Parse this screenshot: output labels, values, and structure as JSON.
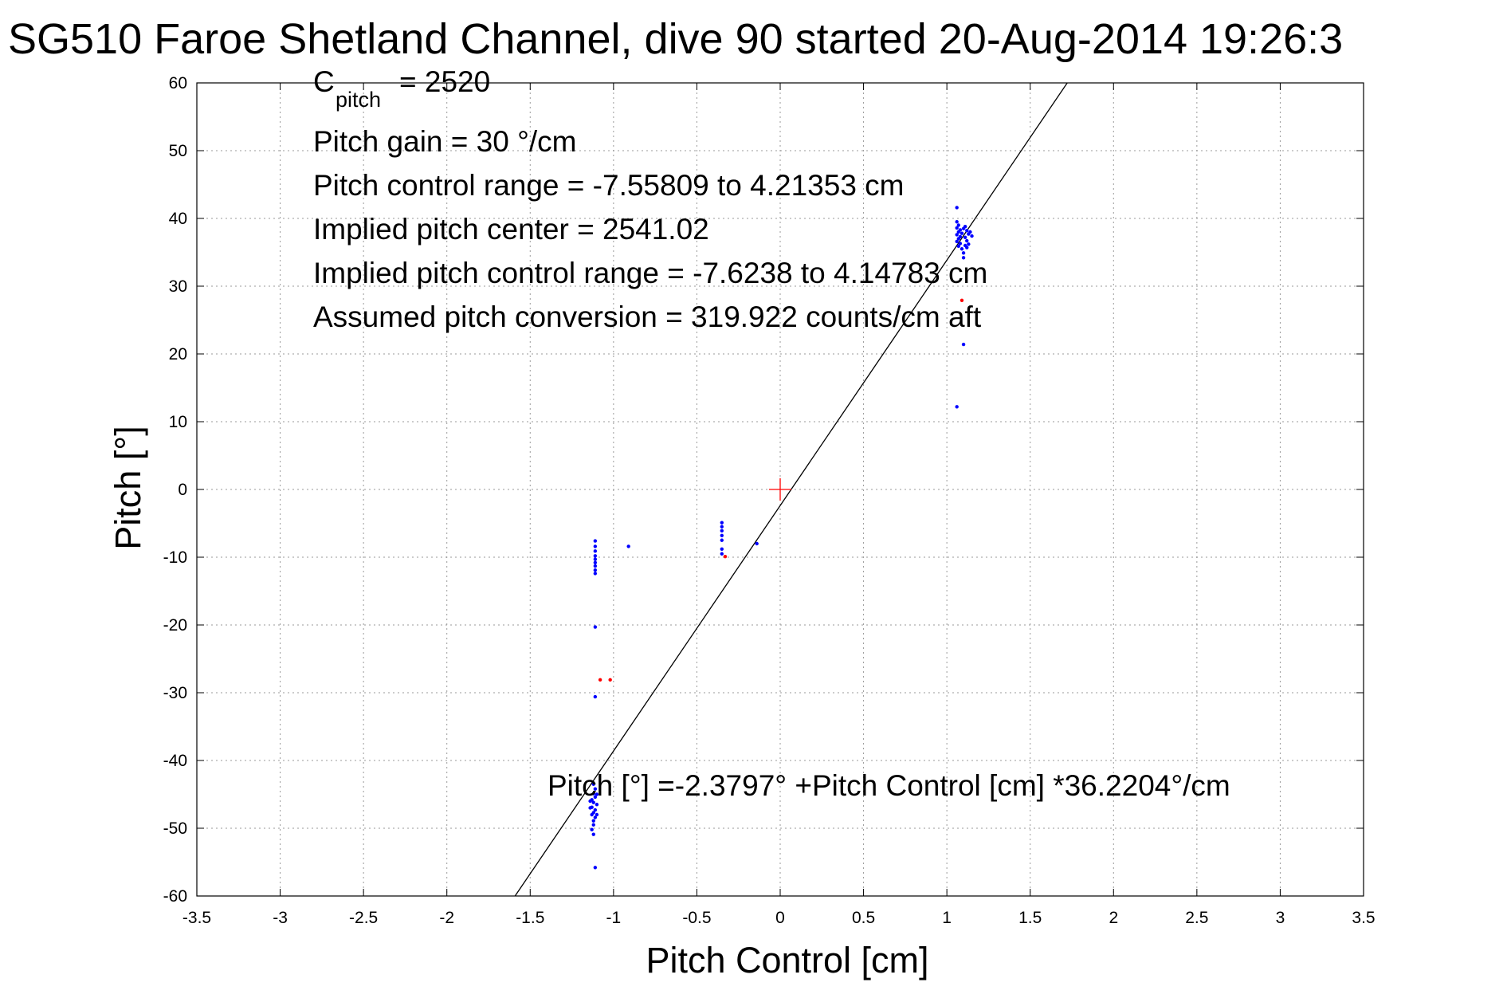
{
  "chart_data": {
    "type": "scatter",
    "title": "SG510 Faroe Shetland Channel, dive 90 started 20-Aug-2014 19:26:3",
    "xlabel": "Pitch Control [cm]",
    "ylabel": "Pitch [°]",
    "xlim": [
      -3.5,
      3.5
    ],
    "ylim": [
      -60,
      60
    ],
    "xticks": [
      -3.5,
      -3,
      -2.5,
      -2,
      -1.5,
      -1,
      -0.5,
      0,
      0.5,
      1,
      1.5,
      2,
      2.5,
      3,
      3.5
    ],
    "xtick_labels": [
      "-3.5",
      "-3",
      "-2.5",
      "-2",
      "-1.5",
      "-1",
      "-0.5",
      "0",
      "0.5",
      "1",
      "1.5",
      "2",
      "2.5",
      "3",
      "3.5"
    ],
    "yticks": [
      60,
      50,
      40,
      30,
      20,
      10,
      0,
      -10,
      -20,
      -30,
      -40,
      -50,
      -60
    ],
    "ytick_labels": [
      "60",
      "50",
      "40",
      "30",
      "20",
      "10",
      "0",
      "-10",
      "-20",
      "-30",
      "-40",
      "-50",
      "-60"
    ],
    "grid": true,
    "colors": {
      "good": "#0000ff",
      "bad": "#ff0000",
      "fit": "#000000",
      "center": "#ff0000"
    },
    "fit_line": {
      "intercept": -2.3797,
      "slope": 36.2204
    },
    "center_marker": {
      "x": 0,
      "y": 0
    },
    "series": [
      {
        "color": "#0000ff",
        "points": [
          [
            -1.11,
            -7.6
          ],
          [
            -1.11,
            -8.4
          ],
          [
            -1.11,
            -9.1
          ],
          [
            -1.11,
            -9.8
          ],
          [
            -1.11,
            -10.3
          ],
          [
            -1.11,
            -10.8
          ],
          [
            -1.11,
            -11.3
          ],
          [
            -1.11,
            -11.9
          ],
          [
            -1.11,
            -12.4
          ],
          [
            -0.91,
            -8.4
          ],
          [
            -1.11,
            -20.3
          ],
          [
            -1.11,
            -30.6
          ],
          [
            -0.35,
            -4.9
          ],
          [
            -0.35,
            -5.5
          ],
          [
            -0.35,
            -6.1
          ],
          [
            -0.35,
            -6.8
          ],
          [
            -0.35,
            -7.5
          ],
          [
            -0.35,
            -8.8
          ],
          [
            -0.35,
            -9.5
          ],
          [
            -0.14,
            -8.0
          ],
          [
            -1.12,
            -43.5
          ],
          [
            -1.11,
            -44.2
          ],
          [
            -1.12,
            -44.9
          ],
          [
            -1.11,
            -45.4
          ],
          [
            -1.13,
            -45.8
          ],
          [
            -1.12,
            -46.2
          ],
          [
            -1.1,
            -46.5
          ],
          [
            -1.13,
            -46.9
          ],
          [
            -1.11,
            -47.3
          ],
          [
            -1.12,
            -47.7
          ],
          [
            -1.13,
            -48.0
          ],
          [
            -1.11,
            -48.4
          ],
          [
            -1.12,
            -48.9
          ],
          [
            -1.12,
            -49.5
          ],
          [
            -1.13,
            -50.2
          ],
          [
            -1.12,
            -50.9
          ],
          [
            -1.11,
            -55.8
          ],
          [
            -1.1,
            -45.0
          ],
          [
            -1.14,
            -47.0
          ],
          [
            -1.1,
            -48.0
          ],
          [
            -1.14,
            -46.0
          ],
          [
            1.06,
            41.6
          ],
          [
            1.06,
            39.5
          ],
          [
            1.07,
            39.0
          ],
          [
            1.06,
            38.6
          ],
          [
            1.08,
            38.3
          ],
          [
            1.07,
            38.0
          ],
          [
            1.06,
            37.6
          ],
          [
            1.08,
            37.3
          ],
          [
            1.07,
            37.0
          ],
          [
            1.06,
            36.6
          ],
          [
            1.08,
            36.3
          ],
          [
            1.07,
            35.9
          ],
          [
            1.09,
            35.5
          ],
          [
            1.1,
            34.9
          ],
          [
            1.1,
            34.2
          ],
          [
            1.11,
            38.8
          ],
          [
            1.12,
            38.2
          ],
          [
            1.13,
            37.7
          ],
          [
            1.11,
            37.2
          ],
          [
            1.12,
            36.7
          ],
          [
            1.13,
            36.2
          ],
          [
            1.14,
            38.0
          ],
          [
            1.15,
            37.4
          ],
          [
            1.1,
            38.5
          ],
          [
            1.09,
            37.8
          ],
          [
            1.11,
            36.0
          ],
          [
            1.12,
            35.7
          ],
          [
            1.1,
            21.4
          ],
          [
            1.06,
            12.2
          ]
        ]
      },
      {
        "color": "#ff0000",
        "points": [
          [
            -1.08,
            -28.1
          ],
          [
            -1.02,
            -28.1
          ],
          [
            -0.33,
            -9.9
          ],
          [
            1.09,
            27.9
          ]
        ]
      }
    ]
  },
  "annotations": {
    "c_pitch_main": "C",
    "c_pitch_sub": "pitch",
    "c_pitch_value": "= 2520",
    "pitch_gain": "Pitch gain = 30 °/cm",
    "pitch_control_range": "Pitch control range = -7.55809 to 4.21353 cm",
    "implied_pitch_center": "Implied pitch center = 2541.02",
    "implied_pitch_control_range": "Implied pitch control range = -7.6238 to 4.14783 cm",
    "assumed_pitch_conversion": "Assumed pitch conversion = 319.922 counts/cm aft",
    "fit_equation": "Pitch [°] =-2.3797° +Pitch Control [cm] *36.2204°/cm"
  }
}
